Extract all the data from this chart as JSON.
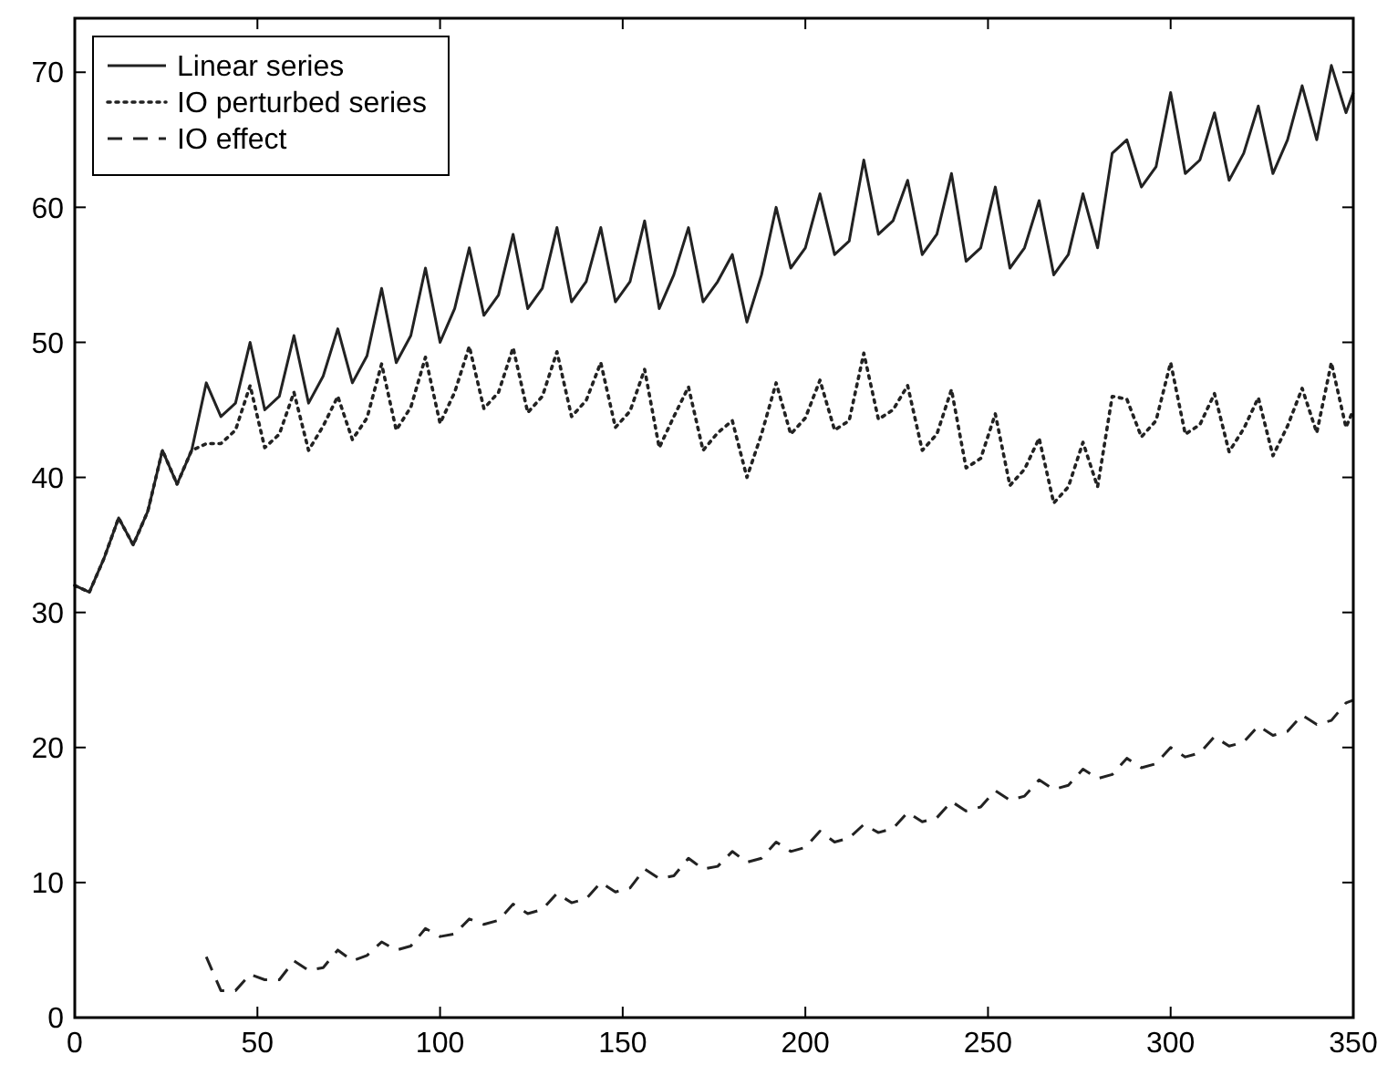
{
  "chart_data": {
    "type": "line",
    "xlim": [
      0,
      350
    ],
    "ylim": [
      0,
      74
    ],
    "xticks": [
      0,
      50,
      100,
      150,
      200,
      250,
      300,
      350
    ],
    "yticks": [
      0,
      10,
      20,
      30,
      40,
      50,
      60,
      70
    ],
    "grid": false,
    "legend": "top left",
    "marker": "none",
    "x": [
      0,
      4,
      8,
      12,
      16,
      20,
      24,
      28,
      32,
      36,
      40,
      44,
      48,
      52,
      56,
      60,
      64,
      68,
      72,
      76,
      80,
      84,
      88,
      92,
      96,
      100,
      104,
      108,
      112,
      116,
      120,
      124,
      128,
      132,
      136,
      140,
      144,
      148,
      152,
      156,
      160,
      164,
      168,
      172,
      176,
      180,
      184,
      188,
      192,
      196,
      200,
      204,
      208,
      212,
      216,
      220,
      224,
      228,
      232,
      236,
      240,
      244,
      248,
      252,
      256,
      260,
      264,
      268,
      272,
      276,
      280,
      284,
      288,
      292,
      296,
      300,
      304,
      308,
      312,
      316,
      320,
      324,
      328,
      332,
      336,
      340,
      344,
      348,
      350
    ],
    "series": [
      {
        "name": "Linear series",
        "color": "#222222",
        "line_style": "solid",
        "values": [
          32,
          31.5,
          34,
          37,
          35,
          37.5,
          42,
          39.5,
          42,
          47,
          44.5,
          45.5,
          50,
          45,
          46,
          50.5,
          45.5,
          47.5,
          51,
          47,
          49,
          54,
          48.5,
          50.5,
          55.5,
          50,
          52.5,
          57,
          52,
          53.5,
          58,
          52.5,
          54,
          58.5,
          53,
          54.5,
          58.5,
          53,
          54.5,
          59,
          52.5,
          55,
          58.5,
          53,
          54.5,
          56.5,
          51.5,
          55,
          60,
          55.5,
          57,
          61,
          56.5,
          57.5,
          63.5,
          58,
          59,
          62,
          56.5,
          58,
          62.5,
          56,
          57,
          61.5,
          55.5,
          57,
          60.5,
          55,
          56.5,
          61,
          57,
          64,
          65,
          61.5,
          63,
          68.5,
          62.5,
          63.5,
          67,
          62,
          64,
          67.5,
          62.5,
          65,
          69,
          65,
          70.5,
          67,
          68.5
        ]
      },
      {
        "name": "IO perturbed series",
        "color": "#222222",
        "line_style": "dotted",
        "values": [
          32,
          31.5,
          34,
          37,
          35,
          37.5,
          42,
          39.5,
          42,
          42.5,
          42.5,
          43.5,
          46.8,
          42.2,
          43.2,
          46.3,
          42,
          43.8,
          46,
          42.8,
          44.4,
          48.4,
          43.5,
          45.2,
          48.9,
          44,
          46.3,
          49.7,
          45.1,
          46.3,
          49.6,
          44.8,
          46,
          49.3,
          44.5,
          45.7,
          48.5,
          43.7,
          44.9,
          48,
          42.2,
          44.5,
          46.7,
          42,
          43.3,
          44.2,
          40,
          43.2,
          47,
          43.2,
          44.4,
          47.2,
          43.5,
          44.2,
          49.2,
          44.3,
          45,
          46.8,
          42,
          43.2,
          46.5,
          40.7,
          41.4,
          44.7,
          39.4,
          40.6,
          42.9,
          38.1,
          39.3,
          42.6,
          39.3,
          46,
          45.8,
          43,
          44.2,
          48.5,
          43.2,
          43.9,
          46.2,
          41.9,
          43.6,
          45.9,
          41.6,
          43.8,
          46.6,
          43.3,
          48.5,
          43.7,
          45
        ]
      },
      {
        "name": "IO effect",
        "color": "#222222",
        "line_style": "dashed",
        "x": [
          36,
          40,
          44,
          48,
          52,
          56,
          60,
          64,
          68,
          72,
          76,
          80,
          84,
          88,
          92,
          96,
          100,
          104,
          108,
          112,
          116,
          120,
          124,
          128,
          132,
          136,
          140,
          144,
          148,
          152,
          156,
          160,
          164,
          168,
          172,
          176,
          180,
          184,
          188,
          192,
          196,
          200,
          204,
          208,
          212,
          216,
          220,
          224,
          228,
          232,
          236,
          240,
          244,
          248,
          252,
          256,
          260,
          264,
          268,
          272,
          276,
          280,
          284,
          288,
          292,
          296,
          300,
          304,
          308,
          312,
          316,
          320,
          324,
          328,
          332,
          336,
          340,
          344,
          348,
          350
        ],
        "values": [
          4.5,
          2,
          2,
          3.2,
          2.8,
          2.8,
          4.2,
          3.5,
          3.7,
          5,
          4.2,
          4.6,
          5.6,
          5,
          5.3,
          6.6,
          6,
          6.2,
          7.3,
          6.9,
          7.2,
          8.4,
          7.7,
          8,
          9.2,
          8.5,
          8.8,
          10,
          9.3,
          9.6,
          11,
          10.3,
          10.5,
          11.8,
          11,
          11.2,
          12.3,
          11.5,
          11.8,
          13,
          12.3,
          12.6,
          13.8,
          13,
          13.3,
          14.3,
          13.7,
          14,
          15.2,
          14.5,
          14.8,
          16,
          15.3,
          15.6,
          16.8,
          16.1,
          16.4,
          17.6,
          16.9,
          17.2,
          18.4,
          17.7,
          18,
          19.2,
          18.5,
          18.8,
          20,
          19.3,
          19.6,
          20.8,
          20.1,
          20.4,
          21.6,
          20.9,
          21.2,
          22.4,
          21.7,
          22,
          23.3,
          23.5
        ]
      }
    ]
  }
}
